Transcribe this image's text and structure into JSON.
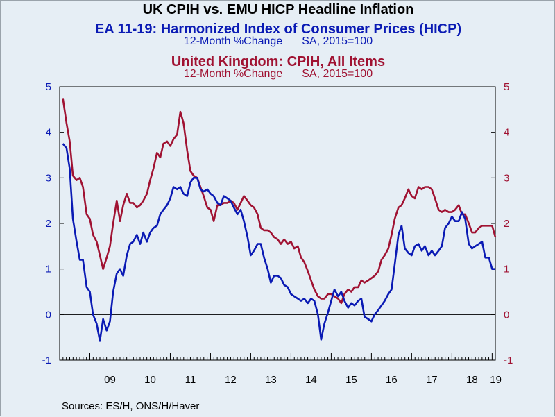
{
  "chart_data": {
    "type": "line",
    "title": "UK CPIH vs. EMU HICP Headline Inflation",
    "series": [
      {
        "name": "EA 11-19: Harmonized Index of Consumer Prices (HICP)",
        "units": "12-Month %Change",
        "basis": "SA, 2015=100",
        "color": "#0a1ab4",
        "points": [
          [
            2008.33,
            3.75
          ],
          [
            2008.42,
            3.65
          ],
          [
            2008.5,
            3.2
          ],
          [
            2008.58,
            2.1
          ],
          [
            2008.67,
            1.6
          ],
          [
            2008.75,
            1.2
          ],
          [
            2008.83,
            1.2
          ],
          [
            2008.92,
            0.6
          ],
          [
            2009.0,
            0.5
          ],
          [
            2009.08,
            0.0
          ],
          [
            2009.17,
            -0.2
          ],
          [
            2009.25,
            -0.58
          ],
          [
            2009.33,
            -0.1
          ],
          [
            2009.42,
            -0.35
          ],
          [
            2009.5,
            -0.15
          ],
          [
            2009.58,
            0.5
          ],
          [
            2009.67,
            0.9
          ],
          [
            2009.75,
            1.0
          ],
          [
            2009.83,
            0.85
          ],
          [
            2009.92,
            1.3
          ],
          [
            2010.0,
            1.55
          ],
          [
            2010.08,
            1.6
          ],
          [
            2010.17,
            1.75
          ],
          [
            2010.25,
            1.55
          ],
          [
            2010.33,
            1.8
          ],
          [
            2010.42,
            1.6
          ],
          [
            2010.5,
            1.8
          ],
          [
            2010.58,
            1.9
          ],
          [
            2010.67,
            1.95
          ],
          [
            2010.75,
            2.2
          ],
          [
            2010.83,
            2.3
          ],
          [
            2010.92,
            2.4
          ],
          [
            2011.0,
            2.55
          ],
          [
            2011.08,
            2.8
          ],
          [
            2011.17,
            2.75
          ],
          [
            2011.25,
            2.8
          ],
          [
            2011.33,
            2.65
          ],
          [
            2011.42,
            2.6
          ],
          [
            2011.5,
            2.9
          ],
          [
            2011.58,
            3.0
          ],
          [
            2011.67,
            3.0
          ],
          [
            2011.75,
            2.75
          ],
          [
            2011.83,
            2.7
          ],
          [
            2011.92,
            2.75
          ],
          [
            2012.0,
            2.65
          ],
          [
            2012.08,
            2.6
          ],
          [
            2012.17,
            2.45
          ],
          [
            2012.25,
            2.4
          ],
          [
            2012.33,
            2.6
          ],
          [
            2012.42,
            2.55
          ],
          [
            2012.5,
            2.5
          ],
          [
            2012.58,
            2.35
          ],
          [
            2012.67,
            2.2
          ],
          [
            2012.75,
            2.3
          ],
          [
            2012.83,
            2.05
          ],
          [
            2012.92,
            1.7
          ],
          [
            2013.0,
            1.3
          ],
          [
            2013.08,
            1.4
          ],
          [
            2013.17,
            1.55
          ],
          [
            2013.25,
            1.55
          ],
          [
            2013.33,
            1.25
          ],
          [
            2013.42,
            1.0
          ],
          [
            2013.5,
            0.7
          ],
          [
            2013.58,
            0.85
          ],
          [
            2013.67,
            0.85
          ],
          [
            2013.75,
            0.8
          ],
          [
            2013.83,
            0.65
          ],
          [
            2013.92,
            0.6
          ],
          [
            2014.0,
            0.45
          ],
          [
            2014.08,
            0.4
          ],
          [
            2014.17,
            0.35
          ],
          [
            2014.25,
            0.3
          ],
          [
            2014.33,
            0.35
          ],
          [
            2014.42,
            0.25
          ],
          [
            2014.5,
            0.35
          ],
          [
            2014.58,
            0.3
          ],
          [
            2014.67,
            0.0
          ],
          [
            2014.75,
            -0.55
          ],
          [
            2014.83,
            -0.2
          ],
          [
            2014.92,
            0.05
          ],
          [
            2015.0,
            0.3
          ],
          [
            2015.08,
            0.55
          ],
          [
            2015.17,
            0.4
          ],
          [
            2015.25,
            0.5
          ],
          [
            2015.33,
            0.3
          ],
          [
            2015.42,
            0.15
          ],
          [
            2015.5,
            0.25
          ],
          [
            2015.58,
            0.2
          ],
          [
            2015.67,
            0.3
          ],
          [
            2015.75,
            0.35
          ],
          [
            2015.83,
            -0.05
          ],
          [
            2015.92,
            -0.1
          ],
          [
            2016.0,
            -0.15
          ],
          [
            2016.08,
            0.0
          ],
          [
            2016.17,
            0.1
          ],
          [
            2016.25,
            0.2
          ],
          [
            2016.33,
            0.3
          ],
          [
            2016.42,
            0.45
          ],
          [
            2016.5,
            0.55
          ],
          [
            2016.58,
            1.1
          ],
          [
            2016.67,
            1.75
          ],
          [
            2016.75,
            1.95
          ],
          [
            2016.83,
            1.45
          ],
          [
            2016.92,
            1.35
          ],
          [
            2017.0,
            1.3
          ],
          [
            2017.08,
            1.5
          ],
          [
            2017.17,
            1.55
          ],
          [
            2017.25,
            1.4
          ],
          [
            2017.33,
            1.5
          ],
          [
            2017.42,
            1.3
          ],
          [
            2017.5,
            1.4
          ],
          [
            2017.58,
            1.3
          ],
          [
            2017.67,
            1.4
          ],
          [
            2017.75,
            1.5
          ],
          [
            2017.83,
            1.9
          ],
          [
            2017.92,
            2.0
          ],
          [
            2018.0,
            2.15
          ],
          [
            2018.08,
            2.05
          ],
          [
            2018.17,
            2.05
          ],
          [
            2018.25,
            2.25
          ],
          [
            2018.33,
            2.1
          ],
          [
            2018.42,
            1.55
          ],
          [
            2018.5,
            1.45
          ],
          [
            2018.58,
            1.5
          ],
          [
            2018.67,
            1.55
          ],
          [
            2018.75,
            1.6
          ],
          [
            2018.83,
            1.25
          ],
          [
            2018.92,
            1.25
          ],
          [
            2019.0,
            1.0
          ],
          [
            2019.08,
            1.0
          ]
        ]
      },
      {
        "name": "United Kingdom: CPIH, All Items",
        "units": "12-Month %Change",
        "basis": "SA, 2015=100",
        "color": "#a01232",
        "points": [
          [
            2008.33,
            4.75
          ],
          [
            2008.42,
            4.2
          ],
          [
            2008.5,
            3.8
          ],
          [
            2008.58,
            3.05
          ],
          [
            2008.67,
            2.95
          ],
          [
            2008.75,
            3.0
          ],
          [
            2008.83,
            2.8
          ],
          [
            2008.92,
            2.2
          ],
          [
            2009.0,
            2.1
          ],
          [
            2009.08,
            1.75
          ],
          [
            2009.17,
            1.6
          ],
          [
            2009.25,
            1.3
          ],
          [
            2009.33,
            1.0
          ],
          [
            2009.42,
            1.25
          ],
          [
            2009.5,
            1.5
          ],
          [
            2009.58,
            2.0
          ],
          [
            2009.67,
            2.5
          ],
          [
            2009.75,
            2.05
          ],
          [
            2009.83,
            2.4
          ],
          [
            2009.92,
            2.65
          ],
          [
            2010.0,
            2.45
          ],
          [
            2010.08,
            2.45
          ],
          [
            2010.17,
            2.35
          ],
          [
            2010.25,
            2.4
          ],
          [
            2010.33,
            2.5
          ],
          [
            2010.42,
            2.65
          ],
          [
            2010.5,
            2.95
          ],
          [
            2010.58,
            3.2
          ],
          [
            2010.67,
            3.55
          ],
          [
            2010.75,
            3.45
          ],
          [
            2010.83,
            3.75
          ],
          [
            2010.92,
            3.8
          ],
          [
            2011.0,
            3.7
          ],
          [
            2011.08,
            3.85
          ],
          [
            2011.17,
            3.95
          ],
          [
            2011.25,
            4.45
          ],
          [
            2011.33,
            4.2
          ],
          [
            2011.42,
            3.6
          ],
          [
            2011.5,
            3.15
          ],
          [
            2011.58,
            3.05
          ],
          [
            2011.67,
            3.0
          ],
          [
            2011.75,
            2.8
          ],
          [
            2011.83,
            2.6
          ],
          [
            2011.92,
            2.35
          ],
          [
            2012.0,
            2.3
          ],
          [
            2012.08,
            2.05
          ],
          [
            2012.17,
            2.4
          ],
          [
            2012.25,
            2.4
          ],
          [
            2012.33,
            2.45
          ],
          [
            2012.42,
            2.45
          ],
          [
            2012.5,
            2.5
          ],
          [
            2012.58,
            2.45
          ],
          [
            2012.67,
            2.3
          ],
          [
            2012.75,
            2.45
          ],
          [
            2012.83,
            2.6
          ],
          [
            2012.92,
            2.5
          ],
          [
            2013.0,
            2.4
          ],
          [
            2013.08,
            2.35
          ],
          [
            2013.17,
            2.2
          ],
          [
            2013.25,
            1.9
          ],
          [
            2013.33,
            1.85
          ],
          [
            2013.42,
            1.85
          ],
          [
            2013.5,
            1.8
          ],
          [
            2013.58,
            1.7
          ],
          [
            2013.67,
            1.65
          ],
          [
            2013.75,
            1.55
          ],
          [
            2013.83,
            1.65
          ],
          [
            2013.92,
            1.55
          ],
          [
            2014.0,
            1.6
          ],
          [
            2014.08,
            1.45
          ],
          [
            2014.17,
            1.5
          ],
          [
            2014.25,
            1.25
          ],
          [
            2014.33,
            1.15
          ],
          [
            2014.42,
            0.95
          ],
          [
            2014.5,
            0.75
          ],
          [
            2014.58,
            0.55
          ],
          [
            2014.67,
            0.4
          ],
          [
            2014.75,
            0.35
          ],
          [
            2014.83,
            0.35
          ],
          [
            2014.92,
            0.45
          ],
          [
            2015.0,
            0.45
          ],
          [
            2015.08,
            0.4
          ],
          [
            2015.17,
            0.35
          ],
          [
            2015.25,
            0.25
          ],
          [
            2015.33,
            0.45
          ],
          [
            2015.42,
            0.55
          ],
          [
            2015.5,
            0.5
          ],
          [
            2015.58,
            0.6
          ],
          [
            2015.67,
            0.6
          ],
          [
            2015.75,
            0.75
          ],
          [
            2015.83,
            0.7
          ],
          [
            2015.92,
            0.75
          ],
          [
            2016.0,
            0.8
          ],
          [
            2016.08,
            0.85
          ],
          [
            2016.17,
            0.95
          ],
          [
            2016.25,
            1.2
          ],
          [
            2016.33,
            1.3
          ],
          [
            2016.42,
            1.45
          ],
          [
            2016.5,
            1.75
          ],
          [
            2016.58,
            2.1
          ],
          [
            2016.67,
            2.35
          ],
          [
            2016.75,
            2.4
          ],
          [
            2016.83,
            2.55
          ],
          [
            2016.92,
            2.75
          ],
          [
            2017.0,
            2.6
          ],
          [
            2017.08,
            2.55
          ],
          [
            2017.17,
            2.8
          ],
          [
            2017.25,
            2.75
          ],
          [
            2017.33,
            2.8
          ],
          [
            2017.42,
            2.8
          ],
          [
            2017.5,
            2.75
          ],
          [
            2017.58,
            2.55
          ],
          [
            2017.67,
            2.3
          ],
          [
            2017.75,
            2.25
          ],
          [
            2017.83,
            2.3
          ],
          [
            2017.92,
            2.25
          ],
          [
            2018.0,
            2.25
          ],
          [
            2018.08,
            2.3
          ],
          [
            2018.17,
            2.4
          ],
          [
            2018.25,
            2.2
          ],
          [
            2018.33,
            2.2
          ],
          [
            2018.42,
            2.0
          ],
          [
            2018.5,
            1.8
          ],
          [
            2018.58,
            1.8
          ],
          [
            2018.67,
            1.9
          ],
          [
            2018.75,
            1.95
          ],
          [
            2018.83,
            1.95
          ],
          [
            2018.92,
            1.95
          ],
          [
            2019.0,
            1.95
          ],
          [
            2019.08,
            1.7
          ]
        ]
      }
    ],
    "x_tick_labels": [
      "09",
      "10",
      "11",
      "12",
      "13",
      "14",
      "15",
      "16",
      "17",
      "18",
      "19"
    ],
    "x_tick_years": [
      2009,
      2010,
      2011,
      2012,
      2013,
      2014,
      2015,
      2016,
      2017,
      2018,
      2019
    ],
    "xlim": [
      2008.25,
      2019.08
    ],
    "ylim": [
      -1,
      5
    ],
    "y_ticks": [
      -1,
      0,
      1,
      2,
      3,
      4,
      5
    ],
    "grid": false,
    "zero_line": true,
    "source": "Sources:  ES/H, ONS/H/Haver",
    "colors": {
      "background": "#e6eef5",
      "left_axis": "#0a1ab4",
      "right_axis": "#a01232"
    }
  }
}
